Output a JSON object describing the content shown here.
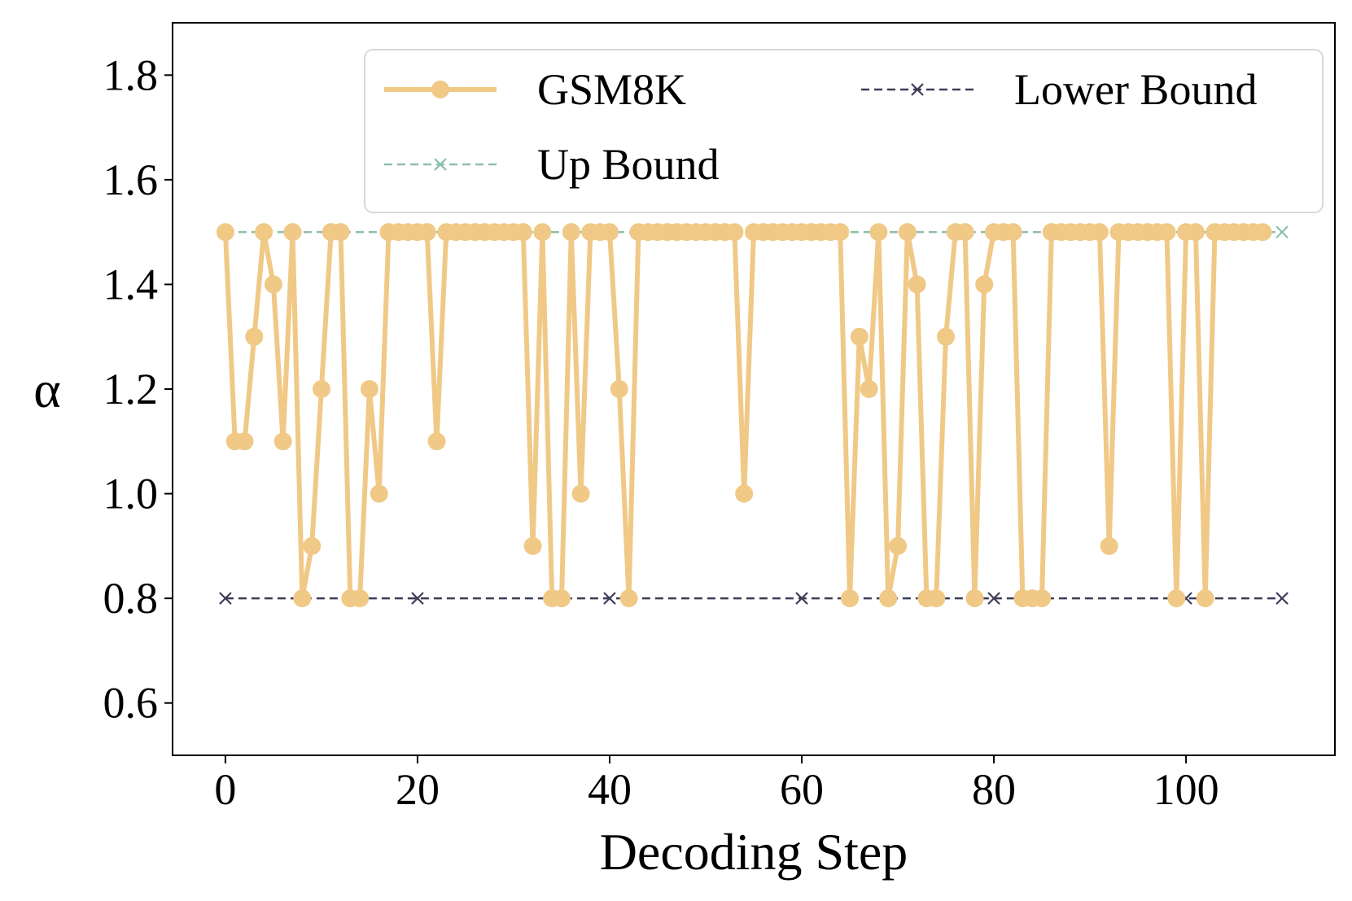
{
  "chart_data": {
    "type": "line",
    "title": "",
    "xlabel": "Decoding Step",
    "ylabel": "α",
    "xlim": [
      -5.5,
      115.5
    ],
    "ylim": [
      0.5,
      1.9
    ],
    "xticks": [
      0,
      20,
      40,
      60,
      80,
      100
    ],
    "xtick_labels": [
      "0",
      "20",
      "40",
      "60",
      "80",
      "100"
    ],
    "yticks": [
      0.6,
      0.8,
      1.0,
      1.2,
      1.4,
      1.6,
      1.8
    ],
    "ytick_labels": [
      "0.6",
      "0.8",
      "1.0",
      "1.2",
      "1.4",
      "1.6",
      "1.8"
    ],
    "grid": false,
    "legend_position": "top-right",
    "series": [
      {
        "name": "GSM8K",
        "color": "#F0C987",
        "style": "solid",
        "marker": "circle",
        "x": [
          0,
          1,
          2,
          3,
          4,
          5,
          6,
          7,
          8,
          9,
          10,
          11,
          12,
          13,
          14,
          15,
          16,
          17,
          18,
          19,
          20,
          21,
          22,
          23,
          24,
          25,
          26,
          27,
          28,
          29,
          30,
          31,
          32,
          33,
          34,
          35,
          36,
          37,
          38,
          39,
          40,
          41,
          42,
          43,
          44,
          45,
          46,
          47,
          48,
          49,
          50,
          51,
          52,
          53,
          54,
          55,
          56,
          57,
          58,
          59,
          60,
          61,
          62,
          63,
          64,
          65,
          66,
          67,
          68,
          69,
          70,
          71,
          72,
          73,
          74,
          75,
          76,
          77,
          78,
          79,
          80,
          81,
          82,
          83,
          84,
          85,
          86,
          87,
          88,
          89,
          90,
          91,
          92,
          93,
          94,
          95,
          96,
          97,
          98,
          99,
          100,
          101,
          102,
          103,
          104,
          105,
          106,
          107,
          108
        ],
        "y": [
          1.5,
          1.1,
          1.1,
          1.3,
          1.5,
          1.4,
          1.1,
          1.5,
          0.8,
          0.9,
          1.2,
          1.5,
          1.5,
          0.8,
          0.8,
          1.2,
          1.0,
          1.5,
          1.5,
          1.5,
          1.5,
          1.5,
          1.1,
          1.5,
          1.5,
          1.5,
          1.5,
          1.5,
          1.5,
          1.5,
          1.5,
          1.5,
          0.9,
          1.5,
          0.8,
          0.8,
          1.5,
          1.0,
          1.5,
          1.5,
          1.5,
          1.2,
          0.8,
          1.5,
          1.5,
          1.5,
          1.5,
          1.5,
          1.5,
          1.5,
          1.5,
          1.5,
          1.5,
          1.5,
          1.0,
          1.5,
          1.5,
          1.5,
          1.5,
          1.5,
          1.5,
          1.5,
          1.5,
          1.5,
          1.5,
          0.8,
          1.3,
          1.2,
          1.5,
          0.8,
          0.9,
          1.5,
          1.4,
          0.8,
          0.8,
          1.3,
          1.5,
          1.5,
          0.8,
          1.4,
          1.5,
          1.5,
          1.5,
          0.8,
          0.8,
          0.8,
          1.5,
          1.5,
          1.5,
          1.5,
          1.5,
          1.5,
          0.9,
          1.5,
          1.5,
          1.5,
          1.5,
          1.5,
          1.5,
          0.8,
          1.5,
          1.5,
          0.8,
          1.5,
          1.5,
          1.5,
          1.5,
          1.5,
          1.5
        ]
      },
      {
        "name": "Up Bound",
        "color": "#8DBFAA",
        "style": "dashed",
        "marker": "x",
        "x": [
          0,
          20,
          40,
          60,
          80,
          100,
          110
        ],
        "y": [
          1.5,
          1.5,
          1.5,
          1.5,
          1.5,
          1.5,
          1.5
        ]
      },
      {
        "name": "Lower Bound",
        "color": "#3F3C5A",
        "style": "dashed",
        "marker": "x",
        "x": [
          0,
          20,
          40,
          60,
          80,
          100,
          110
        ],
        "y": [
          0.8,
          0.8,
          0.8,
          0.8,
          0.8,
          0.8,
          0.8
        ]
      }
    ]
  }
}
